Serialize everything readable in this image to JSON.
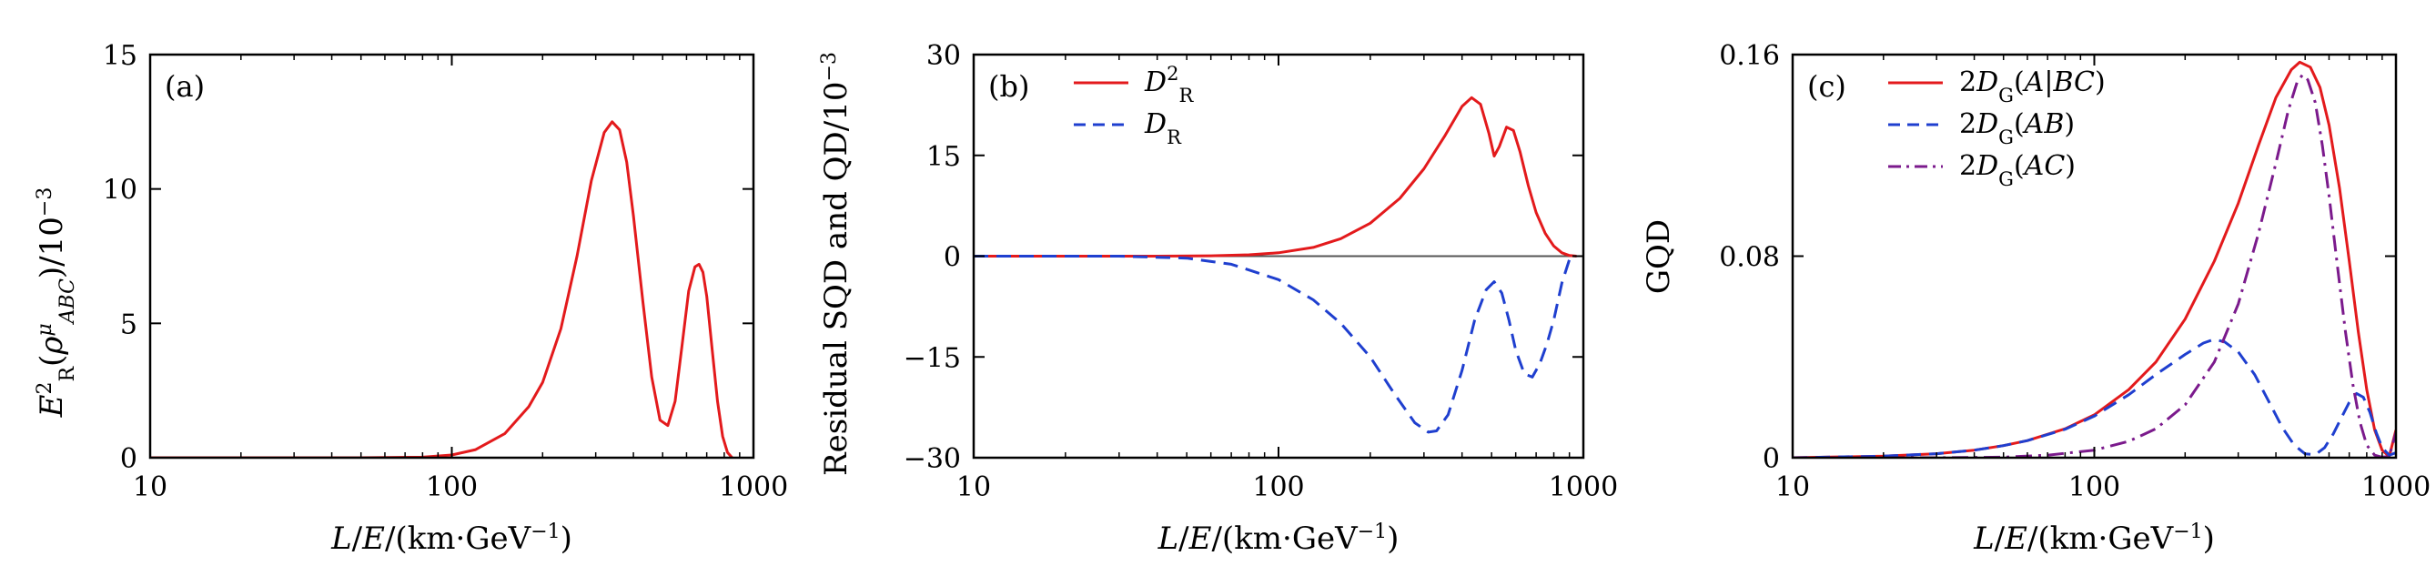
{
  "chart_data": [
    {
      "type": "line",
      "panel_label": "(a)",
      "xscale": "log",
      "xlim": [
        10,
        1000
      ],
      "ylim": [
        0,
        15
      ],
      "xticks": [
        10,
        100,
        1000
      ],
      "xtick_labels": [
        "10",
        "100",
        "1000"
      ],
      "yticks": [
        0,
        5,
        10,
        15
      ],
      "ytick_labels": [
        "0",
        "5",
        "10",
        "15"
      ],
      "xlabel": "L/E/(km·GeV⁻¹)",
      "ylabel": "E²R(ρμABC)/10⁻³",
      "legend": "none",
      "series": [
        {
          "color": "#e31a1c",
          "dash": "solid",
          "x": [
            10,
            50,
            80,
            100,
            120,
            150,
            180,
            200,
            230,
            260,
            290,
            320,
            340,
            360,
            380,
            400,
            430,
            460,
            490,
            520,
            550,
            580,
            610,
            640,
            660,
            680,
            700,
            730,
            760,
            790,
            820,
            850
          ],
          "y": [
            0,
            0,
            0.02,
            0.1,
            0.3,
            0.9,
            1.9,
            2.8,
            4.8,
            7.5,
            10.3,
            12.1,
            12.5,
            12.2,
            11.0,
            9.0,
            5.8,
            3.0,
            1.4,
            1.2,
            2.1,
            4.2,
            6.2,
            7.1,
            7.2,
            6.9,
            6.0,
            4.0,
            2.1,
            0.8,
            0.2,
            0
          ]
        }
      ]
    },
    {
      "type": "line",
      "panel_label": "(b)",
      "xscale": "log",
      "xlim": [
        10,
        1000
      ],
      "ylim": [
        -30,
        30
      ],
      "xticks": [
        10,
        100,
        1000
      ],
      "xtick_labels": [
        "10",
        "100",
        "1000"
      ],
      "yticks": [
        -30,
        -15,
        0,
        15,
        30
      ],
      "ytick_labels": [
        "−30",
        "−15",
        "0",
        "15",
        "30"
      ],
      "xlabel": "L/E/(km·GeV⁻¹)",
      "ylabel": "Residual SQD and QD/10⁻³",
      "legend": "top-left",
      "zero_line": true,
      "series": [
        {
          "name": "D²R",
          "color": "#e31a1c",
          "dash": "solid",
          "x": [
            10,
            40,
            60,
            80,
            100,
            130,
            160,
            200,
            250,
            300,
            350,
            400,
            430,
            460,
            490,
            510,
            530,
            560,
            590,
            620,
            660,
            700,
            750,
            800,
            850,
            900,
            950
          ],
          "y": [
            0,
            0,
            0.05,
            0.2,
            0.5,
            1.3,
            2.6,
            4.9,
            8.6,
            13.0,
            17.8,
            22.3,
            23.6,
            22.6,
            18.3,
            14.9,
            16.3,
            19.2,
            18.7,
            15.5,
            10.5,
            6.5,
            3.4,
            1.5,
            0.5,
            0.1,
            0
          ]
        },
        {
          "name": "DR",
          "color": "#1f3fcf",
          "dash": "dashed",
          "x": [
            10,
            30,
            50,
            70,
            100,
            130,
            160,
            200,
            240,
            280,
            310,
            330,
            360,
            400,
            440,
            480,
            510,
            540,
            570,
            600,
            640,
            680,
            720,
            760,
            800,
            850,
            900,
            950
          ],
          "y": [
            0,
            0,
            -0.3,
            -1.2,
            -3.5,
            -6.5,
            -10.0,
            -15.0,
            -20.5,
            -24.8,
            -26.2,
            -26.0,
            -23.6,
            -17.0,
            -9.5,
            -5.0,
            -3.8,
            -5.5,
            -9.5,
            -14.0,
            -17.5,
            -18.0,
            -16.0,
            -13.0,
            -9.5,
            -4.0,
            -0.5,
            0
          ]
        }
      ]
    },
    {
      "type": "line",
      "panel_label": "(c)",
      "xscale": "log",
      "xlim": [
        10,
        1000
      ],
      "ylim": [
        0,
        0.16
      ],
      "xticks": [
        10,
        100,
        1000
      ],
      "xtick_labels": [
        "10",
        "100",
        "1000"
      ],
      "yticks": [
        0,
        0.08,
        0.16
      ],
      "ytick_labels": [
        "0",
        "0.08",
        "0.16"
      ],
      "xlabel": "L/E/(km·GeV⁻¹)",
      "ylabel": "GQD",
      "legend": "top-left",
      "series": [
        {
          "name": "2DG(A|BC)",
          "color": "#e31a1c",
          "dash": "solid",
          "x": [
            10,
            20,
            30,
            40,
            50,
            60,
            80,
            100,
            130,
            160,
            200,
            250,
            300,
            350,
            400,
            450,
            480,
            520,
            560,
            600,
            650,
            700,
            750,
            800,
            850,
            900,
            950,
            1000
          ],
          "y": [
            0,
            0.0006,
            0.0016,
            0.003,
            0.0048,
            0.0068,
            0.0115,
            0.017,
            0.027,
            0.038,
            0.055,
            0.078,
            0.101,
            0.124,
            0.143,
            0.154,
            0.157,
            0.155,
            0.147,
            0.132,
            0.107,
            0.078,
            0.05,
            0.027,
            0.011,
            0.003,
            0.0005,
            0.011
          ]
        },
        {
          "name": "2DG(AB)",
          "color": "#1f3fcf",
          "dash": "dashed",
          "x": [
            10,
            20,
            30,
            40,
            50,
            60,
            80,
            100,
            130,
            160,
            200,
            230,
            250,
            270,
            300,
            340,
            380,
            420,
            460,
            500,
            540,
            580,
            620,
            660,
            700,
            740,
            780,
            820,
            860,
            900,
            950,
            1000
          ],
          "y": [
            0,
            0.0006,
            0.0016,
            0.003,
            0.0048,
            0.0068,
            0.0113,
            0.0165,
            0.025,
            0.033,
            0.041,
            0.0455,
            0.047,
            0.046,
            0.042,
            0.033,
            0.022,
            0.012,
            0.005,
            0.0015,
            0.0012,
            0.004,
            0.0095,
            0.016,
            0.022,
            0.0255,
            0.024,
            0.018,
            0.01,
            0.004,
            0.001,
            0.002
          ]
        },
        {
          "name": "2DG(AC)",
          "color": "#7b1a8c",
          "dash": "dashdot",
          "x": [
            10,
            30,
            50,
            70,
            100,
            130,
            160,
            200,
            250,
            300,
            350,
            400,
            440,
            470,
            490,
            510,
            540,
            570,
            600,
            640,
            680,
            720,
            760,
            800,
            850,
            900,
            950,
            1000
          ],
          "y": [
            0,
            0,
            0.0002,
            0.001,
            0.003,
            0.0065,
            0.0115,
            0.021,
            0.038,
            0.061,
            0.089,
            0.117,
            0.138,
            0.149,
            0.152,
            0.15,
            0.141,
            0.124,
            0.104,
            0.076,
            0.05,
            0.029,
            0.014,
            0.005,
            0.001,
            0.0002,
            0.0005,
            0.01
          ]
        }
      ]
    }
  ]
}
